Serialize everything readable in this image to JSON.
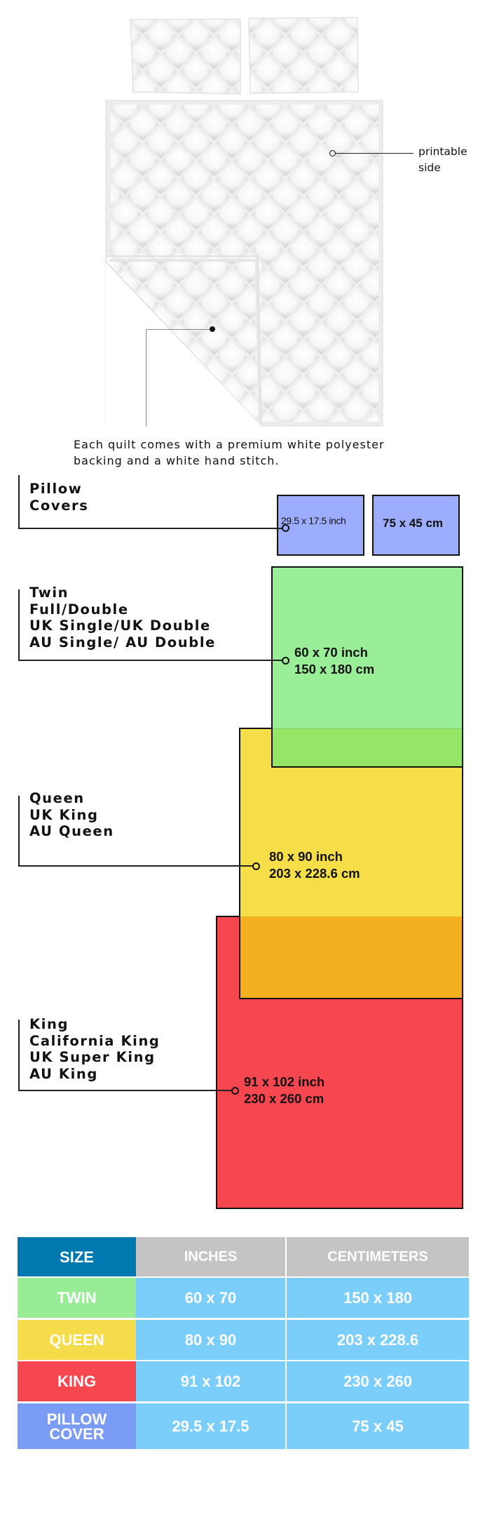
{
  "illustration": {
    "printable_label": "printable\nside",
    "caption": "Each quilt comes with a premium white polyester\nbacking and a white hand stitch."
  },
  "sizes": [
    {
      "id": "pillow",
      "label_lines": [
        "Pillow",
        "Covers"
      ],
      "inch": "29.5 x 17.5 inch",
      "cm": "75 x 45 cm",
      "color": "#9cadfd"
    },
    {
      "id": "twin",
      "label_lines": [
        "Twin",
        "Full/Double",
        "UK Single/UK Double",
        "AU Single/ AU Double"
      ],
      "inch": "60 x 70 inch",
      "cm": "150 x 180 cm",
      "color": "#99ee97"
    },
    {
      "id": "queen",
      "label_lines": [
        "Queen",
        "UK King",
        "AU Queen"
      ],
      "inch": "80 x 90 inch",
      "cm": "203 x 228.6 cm",
      "color": "#f5de48"
    },
    {
      "id": "king",
      "label_lines": [
        "King",
        "California King",
        "UK Super King",
        "AU King"
      ],
      "inch": "91 x 102 inch",
      "cm": "230 x 260 cm",
      "color": "#f64751"
    }
  ],
  "overlap_colors": {
    "twin_queen": "#95e566",
    "queen_king": "#f5b020"
  },
  "table": {
    "headers": [
      "SIZE",
      "INCHES",
      "CENTIMETERS"
    ],
    "header_colors": [
      "#0079b0",
      "#c4c4c4",
      "#c4c4c4"
    ],
    "cell_color": "#7bcefa",
    "rows": [
      {
        "size": "TWIN",
        "inches": "60 x 70",
        "cm": "150 x 180",
        "color": "#99ec96"
      },
      {
        "size": "QUEEN",
        "inches": "80 x 90",
        "cm": "203 x 228.6",
        "color": "#f5dc4a"
      },
      {
        "size": "KING",
        "inches": "91 x 102",
        "cm": "230 x 260",
        "color": "#f64750"
      },
      {
        "size": "PILLOW\nCOVER",
        "inches": "29.5 x 17.5",
        "cm": "75 x 45",
        "color": "#7a9cf5"
      }
    ]
  }
}
